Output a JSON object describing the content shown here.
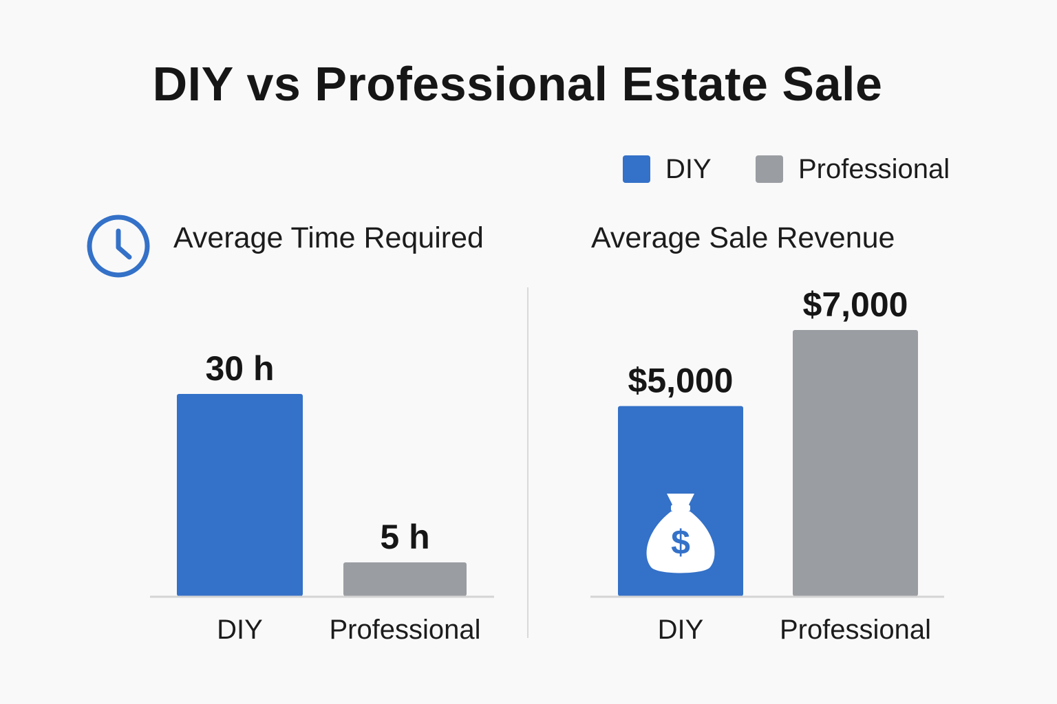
{
  "title": "DIY vs Professional Estate Sale",
  "legend": [
    {
      "label": "DIY",
      "color": "#3471c8"
    },
    {
      "label": "Professional",
      "color": "#9a9da2"
    }
  ],
  "icons": {
    "time": "clock-icon",
    "revenue": "money-bag-icon"
  },
  "chart_data": [
    {
      "type": "bar",
      "title": "Average Time Required",
      "categories": [
        "DIY",
        "Professional"
      ],
      "values": [
        30,
        5
      ],
      "value_labels": [
        "30 h",
        "5 h"
      ],
      "colors": [
        "#3471c8",
        "#9a9da2"
      ],
      "ylim": [
        0,
        30
      ],
      "grid": false
    },
    {
      "type": "bar",
      "title": "Average Sale Revenue",
      "categories": [
        "DIY",
        "Professional"
      ],
      "values": [
        5000,
        7000
      ],
      "value_labels": [
        "$5,000",
        "$7,000"
      ],
      "colors": [
        "#3471c8",
        "#9a9da2"
      ],
      "ylim": [
        0,
        7000
      ],
      "grid": false
    }
  ]
}
